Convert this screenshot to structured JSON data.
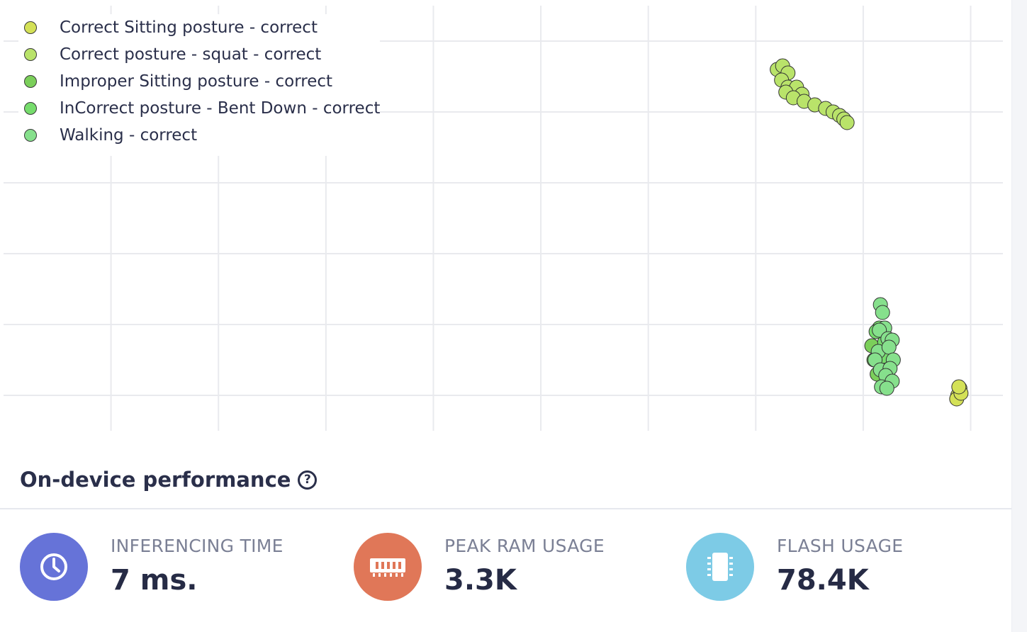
{
  "chart_data": {
    "type": "scatter",
    "title": "",
    "xlabel": "",
    "ylabel": "",
    "grid": true,
    "legend_position": "top-left",
    "xlim": [
      0,
      9.3
    ],
    "ylim": [
      -0.5,
      5.5
    ],
    "series": [
      {
        "name": "Correct Sitting posture - correct",
        "color": "#d4e157",
        "points": [
          [
            8.88,
            0.0
          ],
          [
            8.9,
            0.1
          ],
          [
            8.87,
            -0.05
          ],
          [
            8.91,
            0.03
          ],
          [
            8.89,
            0.12
          ]
        ]
      },
      {
        "name": "Correct posture - squat - correct",
        "color": "#b9e36a",
        "points": [
          [
            7.2,
            4.6
          ],
          [
            7.25,
            4.65
          ],
          [
            7.3,
            4.55
          ],
          [
            7.24,
            4.45
          ],
          [
            7.3,
            4.35
          ],
          [
            7.38,
            4.35
          ],
          [
            7.43,
            4.25
          ],
          [
            7.28,
            4.28
          ],
          [
            7.35,
            4.2
          ],
          [
            7.45,
            4.15
          ],
          [
            7.55,
            4.1
          ],
          [
            7.65,
            4.05
          ],
          [
            7.72,
            4.0
          ],
          [
            7.78,
            3.95
          ],
          [
            7.82,
            3.9
          ],
          [
            7.85,
            3.85
          ]
        ]
      },
      {
        "name": "Improper Sitting posture - correct",
        "color": "#7bcf5a",
        "points": [
          [
            8.1,
            0.5
          ],
          [
            8.13,
            0.3
          ],
          [
            8.08,
            0.7
          ]
        ]
      },
      {
        "name": "InCorrect posture - Bent Down - correct",
        "color": "#76dc6c",
        "points": [
          [
            8.15,
            0.95
          ],
          [
            8.2,
            0.75
          ],
          [
            8.12,
            0.9
          ],
          [
            8.18,
            0.55
          ]
        ]
      },
      {
        "name": "Walking - correct",
        "color": "#86e08c",
        "points": [
          [
            8.16,
            1.28
          ],
          [
            8.18,
            1.17
          ],
          [
            8.2,
            0.95
          ],
          [
            8.15,
            0.92
          ],
          [
            8.23,
            0.8
          ],
          [
            8.27,
            0.78
          ],
          [
            8.14,
            0.62
          ],
          [
            8.24,
            0.68
          ],
          [
            8.28,
            0.5
          ],
          [
            8.11,
            0.5
          ],
          [
            8.16,
            0.36
          ],
          [
            8.25,
            0.38
          ],
          [
            8.21,
            0.28
          ],
          [
            8.27,
            0.2
          ],
          [
            8.17,
            0.12
          ],
          [
            8.22,
            0.1
          ]
        ]
      }
    ]
  },
  "performance": {
    "title": "On-device performance",
    "help_glyph": "?",
    "metrics": [
      {
        "label": "INFERENCING TIME",
        "value": "7 ms.",
        "icon": "clock-icon",
        "color": "#6673d8"
      },
      {
        "label": "PEAK RAM USAGE",
        "value": "3.3K",
        "icon": "ram-chip-icon",
        "color": "#e07758"
      },
      {
        "label": "FLASH USAGE",
        "value": "78.4K",
        "icon": "flash-chip-icon",
        "color": "#7dcbe6"
      }
    ]
  }
}
